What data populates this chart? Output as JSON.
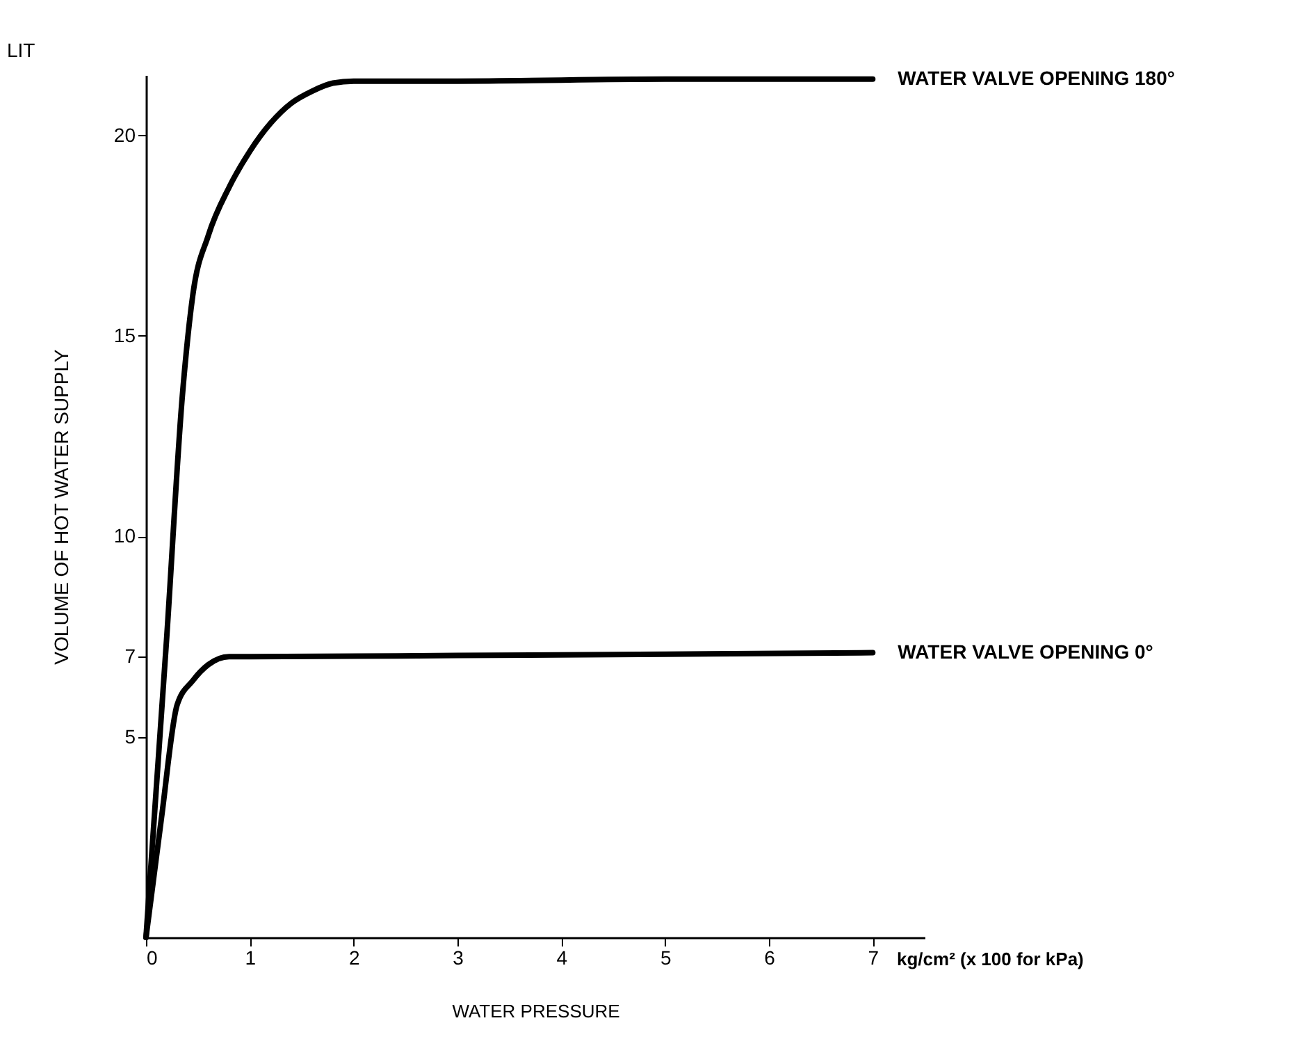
{
  "chart_data": {
    "type": "line",
    "xlabel": "WATER PRESSURE",
    "ylabel": "VOLUME OF HOT WATER SUPPLY",
    "annotations": [
      "LIT",
      "kg/cm² (x 100 for kPa)"
    ],
    "xlim": [
      0,
      7.5
    ],
    "ylim": [
      0,
      21.5
    ],
    "xticks": [
      0,
      1,
      2,
      3,
      4,
      5,
      6,
      7
    ],
    "yticks": [
      5,
      7,
      10,
      15,
      20
    ],
    "grid": false,
    "legend": false,
    "marker": "none",
    "line_style": "solid",
    "series": [
      {
        "name": "WATER VALVE OPENING 180°",
        "color": "#000000",
        "x": [
          0,
          0.2,
          0.35,
          0.45,
          0.6,
          0.8,
          1.0,
          1.2,
          1.4,
          1.6,
          1.8,
          2.0,
          3.0,
          5.0,
          7.0
        ],
        "values": [
          0,
          7.5,
          13.5,
          16.0,
          17.5,
          18.7,
          19.6,
          20.3,
          20.8,
          21.1,
          21.3,
          21.35,
          21.35,
          21.4,
          21.4
        ]
      },
      {
        "name": "WATER VALVE OPENING 0°",
        "color": "#000000",
        "x": [
          0,
          0.15,
          0.3,
          0.45,
          0.6,
          0.8,
          1.0,
          3.0,
          5.0,
          7.0
        ],
        "values": [
          0,
          3.0,
          5.8,
          6.4,
          6.8,
          7.0,
          7.0,
          7.03,
          7.06,
          7.1
        ]
      }
    ]
  }
}
